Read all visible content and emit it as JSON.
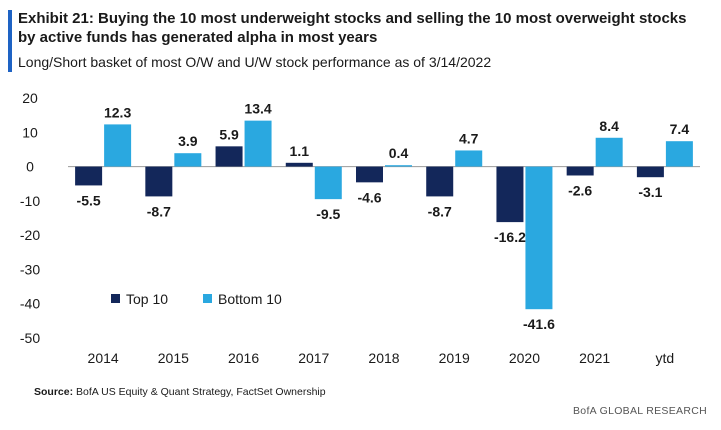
{
  "header": {
    "title": "Exhibit 21: Buying the 10 most underweight stocks and selling the 10 most overweight stocks by active funds has generated alpha in most years",
    "subtitle": "Long/Short basket of most O/W and U/W stock performance as of 3/14/2022"
  },
  "footer": {
    "source_label": "Source:",
    "source_text": "BofA US Equity & Quant Strategy, FactSet Ownership",
    "brand": "BofA GLOBAL RESEARCH"
  },
  "colors": {
    "accent": "#1e63c4",
    "top10": "#13275a",
    "bottom10": "#2aa8e0"
  },
  "chart_data": {
    "type": "bar",
    "title": "Long/Short basket of most O/W and U/W stock performance as of 3/14/2022",
    "xlabel": "",
    "ylabel": "",
    "categories": [
      "2014",
      "2015",
      "2016",
      "2017",
      "2018",
      "2019",
      "2020",
      "2021",
      "ytd"
    ],
    "series": [
      {
        "name": "Top 10",
        "color": "#13275a",
        "values": [
          -5.5,
          -8.7,
          5.9,
          1.1,
          -4.6,
          -8.7,
          -16.2,
          -2.6,
          -3.1
        ]
      },
      {
        "name": "Bottom 10",
        "color": "#2aa8e0",
        "values": [
          12.3,
          3.9,
          13.4,
          -9.5,
          0.4,
          4.7,
          -41.6,
          8.4,
          7.4
        ]
      }
    ],
    "data_labels": [
      [
        "-5.5",
        "-8.7",
        "5.9",
        "1.1",
        "-4.6",
        "-8.7",
        "-16.2",
        "-2.6",
        "-3.1"
      ],
      [
        "12.3",
        "3.9",
        "13.4",
        "-9.5",
        "0.4",
        "4.7",
        "-41.6",
        "8.4",
        "7.4"
      ]
    ],
    "yticks": [
      "20",
      "10",
      "0",
      "-10",
      "-20",
      "-30",
      "-40",
      "-50"
    ],
    "ytick_values": [
      20,
      10,
      0,
      -10,
      -20,
      -30,
      -40,
      -50
    ],
    "ylim": [
      -50,
      20
    ],
    "grid": false,
    "legend_position": "lower-left"
  }
}
